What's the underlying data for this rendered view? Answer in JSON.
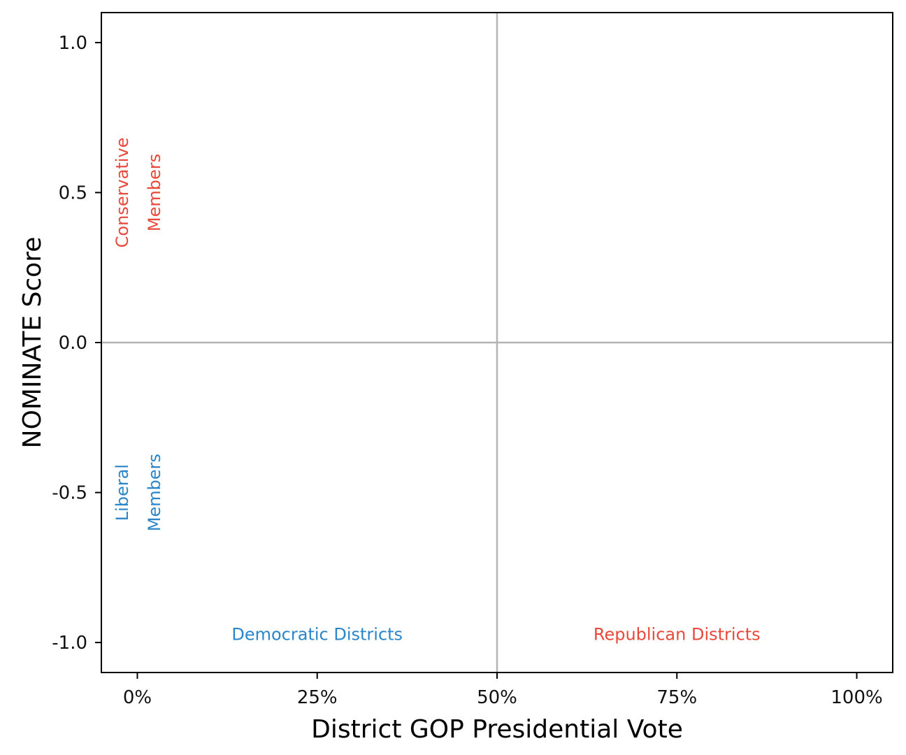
{
  "chart_data": {
    "type": "scatter",
    "title": "",
    "xlabel": "District GOP Presidential Vote",
    "ylabel": "NOMINATE Score",
    "xlim": [
      -0.05,
      1.05
    ],
    "ylim": [
      -1.1,
      1.1
    ],
    "x_ticks": [
      {
        "value": 0,
        "label": "0%"
      },
      {
        "value": 0.25,
        "label": "25%"
      },
      {
        "value": 0.5,
        "label": "50%"
      },
      {
        "value": 0.75,
        "label": "75%"
      },
      {
        "value": 1.0,
        "label": "100%"
      }
    ],
    "y_ticks": [
      {
        "value": 1.0,
        "label": "1.0"
      },
      {
        "value": 0.5,
        "label": "0.5"
      },
      {
        "value": 0.0,
        "label": "0.0"
      },
      {
        "value": -0.5,
        "label": "-0.5"
      },
      {
        "value": -1.0,
        "label": "-1.0"
      }
    ],
    "reference_lines": {
      "x": 0.5,
      "y": 0.0,
      "color": "#b3b3b3"
    },
    "grid": false,
    "legend": "none",
    "series": [],
    "annotations": [
      {
        "id": "conservative",
        "text": "Conservative",
        "x": -0.02,
        "y": 0.5,
        "rotation": -90,
        "color": "#e8493a"
      },
      {
        "id": "conservative-members",
        "text": "Members",
        "x": 0.025,
        "y": 0.5,
        "rotation": -90,
        "color": "#e8493a"
      },
      {
        "id": "liberal",
        "text": "Liberal",
        "x": -0.02,
        "y": -0.5,
        "rotation": -90,
        "color": "#2a86c8"
      },
      {
        "id": "liberal-members",
        "text": "Members",
        "x": 0.025,
        "y": -0.5,
        "rotation": -90,
        "color": "#2a86c8"
      },
      {
        "id": "democratic-districts",
        "text": "Democratic Districts",
        "x": 0.25,
        "y": -0.975,
        "rotation": 0,
        "color": "#2a86c8"
      },
      {
        "id": "republican-districts",
        "text": "Republican Districts",
        "x": 0.75,
        "y": -0.975,
        "rotation": 0,
        "color": "#e8493a"
      }
    ]
  }
}
